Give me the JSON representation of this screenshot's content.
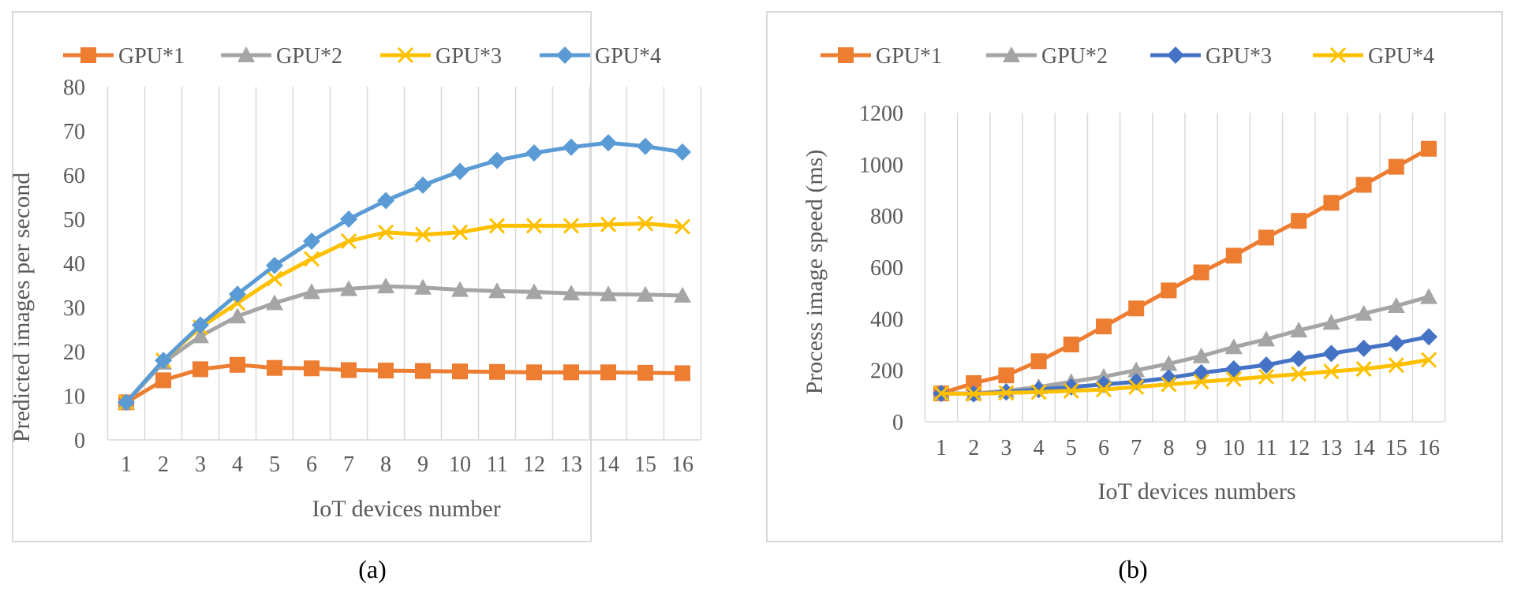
{
  "figure": {
    "panel_a_caption": "(a)",
    "panel_b_caption": "(b)"
  },
  "chart_data": [
    {
      "type": "line",
      "title": "",
      "xlabel": "IoT devices number",
      "ylabel": "Predicted images per second",
      "categories": [
        "1",
        "2",
        "3",
        "4",
        "5",
        "6",
        "7",
        "8",
        "9",
        "10",
        "11",
        "12",
        "13",
        "14",
        "15",
        "16"
      ],
      "ylim": [
        0,
        80
      ],
      "yticks": [
        0,
        10,
        20,
        30,
        40,
        50,
        60,
        70,
        80
      ],
      "grid": "vertical",
      "legend": "top",
      "series": [
        {
          "name": "GPU*1",
          "color": "#ED7D31",
          "marker": "square",
          "values": [
            8.5,
            13.5,
            16,
            17,
            16.3,
            16.2,
            15.8,
            15.7,
            15.6,
            15.5,
            15.4,
            15.3,
            15.3,
            15.3,
            15.2,
            15.1
          ]
        },
        {
          "name": "GPU*2",
          "color": "#A5A5A5",
          "marker": "triangle",
          "values": [
            8.5,
            17.5,
            23.5,
            28,
            31,
            33.5,
            34.2,
            34.8,
            34.5,
            34,
            33.7,
            33.5,
            33.2,
            33,
            32.9,
            32.7
          ]
        },
        {
          "name": "GPU*3",
          "color": "#FFC000",
          "marker": "x",
          "values": [
            8.5,
            18,
            25.5,
            31,
            36.5,
            41,
            45,
            47,
            46.5,
            47,
            48.5,
            48.5,
            48.5,
            48.8,
            49,
            48.3
          ]
        },
        {
          "name": "GPU*4",
          "color": "#5B9BD5",
          "marker": "diamond",
          "values": [
            8.5,
            18,
            26,
            33,
            39.5,
            45,
            50,
            54.2,
            57.7,
            60.8,
            63.3,
            65,
            66.3,
            67.3,
            66.5,
            65.2
          ]
        }
      ]
    },
    {
      "type": "line",
      "title": "",
      "xlabel": "IoT devices numbers",
      "ylabel": "Process image speed (ms)",
      "categories": [
        "1",
        "2",
        "3",
        "4",
        "5",
        "6",
        "7",
        "8",
        "9",
        "10",
        "11",
        "12",
        "13",
        "14",
        "15",
        "16"
      ],
      "ylim": [
        0,
        1200
      ],
      "yticks": [
        0,
        200,
        400,
        600,
        800,
        1000,
        1200
      ],
      "grid": "vertical",
      "legend": "top",
      "series": [
        {
          "name": "GPU*1",
          "color": "#ED7D31",
          "marker": "square",
          "values": [
            110,
            150,
            180,
            235,
            300,
            370,
            440,
            510,
            580,
            645,
            715,
            780,
            850,
            920,
            990,
            1060
          ]
        },
        {
          "name": "GPU*2",
          "color": "#A5A5A5",
          "marker": "triangle",
          "values": [
            110,
            110,
            120,
            135,
            155,
            175,
            200,
            225,
            255,
            290,
            320,
            355,
            385,
            420,
            450,
            485
          ]
        },
        {
          "name": "GPU*3",
          "color": "#4472C4",
          "marker": "diamond",
          "values": [
            110,
            108,
            115,
            125,
            135,
            145,
            155,
            170,
            190,
            205,
            220,
            245,
            265,
            285,
            305,
            330
          ]
        },
        {
          "name": "GPU*4",
          "color": "#FFC000",
          "marker": "x",
          "values": [
            110,
            108,
            112,
            115,
            120,
            125,
            135,
            145,
            155,
            165,
            175,
            185,
            195,
            205,
            220,
            240
          ]
        }
      ]
    }
  ]
}
